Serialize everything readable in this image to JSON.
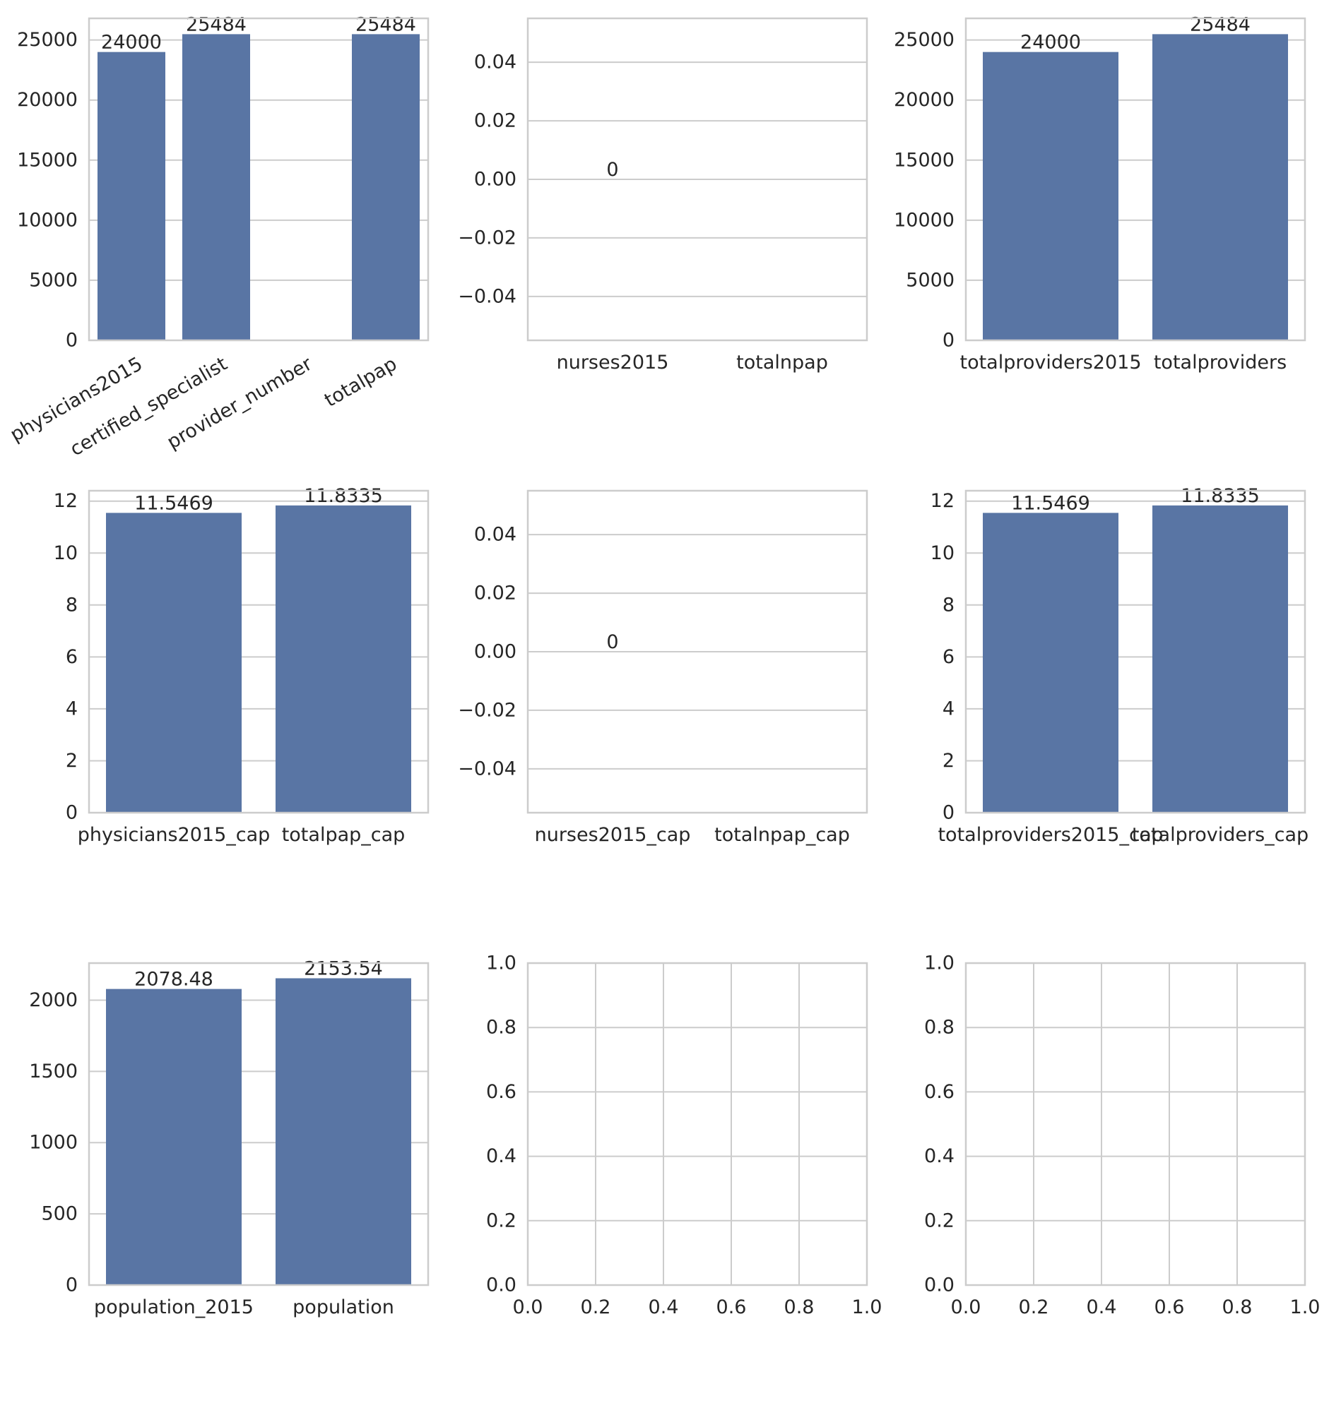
{
  "chart_data": [
    {
      "type": "bar",
      "categories": [
        "physicians2015",
        "certified_specialist",
        "provider_number",
        "totalpap"
      ],
      "values": [
        24000,
        25484,
        0,
        25484
      ],
      "data_labels": [
        "24000",
        "25484",
        "",
        "25484"
      ],
      "ylim": [
        0,
        26800
      ],
      "yticks": [
        0,
        5000,
        10000,
        15000,
        20000,
        25000
      ],
      "ytick_labels": [
        "0",
        "5000",
        "10000",
        "15000",
        "20000",
        "25000"
      ],
      "xtick_rotation": 30,
      "grid": "y"
    },
    {
      "type": "bar",
      "categories": [
        "nurses2015",
        "totalnpap"
      ],
      "values": [
        0,
        0
      ],
      "data_labels": [
        "0",
        ""
      ],
      "ylim": [
        -0.055,
        0.055
      ],
      "yticks": [
        -0.04,
        -0.02,
        0.0,
        0.02,
        0.04
      ],
      "ytick_labels": [
        "−0.04",
        "−0.02",
        "0.00",
        "0.02",
        "0.04"
      ],
      "grid": "y"
    },
    {
      "type": "bar",
      "categories": [
        "totalproviders2015",
        "totalproviders"
      ],
      "values": [
        24000,
        25484
      ],
      "data_labels": [
        "24000",
        "25484"
      ],
      "ylim": [
        0,
        26800
      ],
      "yticks": [
        0,
        5000,
        10000,
        15000,
        20000,
        25000
      ],
      "ytick_labels": [
        "0",
        "5000",
        "10000",
        "15000",
        "20000",
        "25000"
      ],
      "grid": "y"
    },
    {
      "type": "bar",
      "categories": [
        "physicians2015_cap",
        "totalpap_cap"
      ],
      "values": [
        11.5469,
        11.8335
      ],
      "data_labels": [
        "11.5469",
        "11.8335"
      ],
      "ylim": [
        0,
        12.4
      ],
      "yticks": [
        0,
        2,
        4,
        6,
        8,
        10,
        12
      ],
      "ytick_labels": [
        "0",
        "2",
        "4",
        "6",
        "8",
        "10",
        "12"
      ],
      "grid": "y"
    },
    {
      "type": "bar",
      "categories": [
        "nurses2015_cap",
        "totalnpap_cap"
      ],
      "values": [
        0,
        0
      ],
      "data_labels": [
        "0",
        ""
      ],
      "ylim": [
        -0.055,
        0.055
      ],
      "yticks": [
        -0.04,
        -0.02,
        0.0,
        0.02,
        0.04
      ],
      "ytick_labels": [
        "−0.04",
        "−0.02",
        "0.00",
        "0.02",
        "0.04"
      ],
      "grid": "y"
    },
    {
      "type": "bar",
      "categories": [
        "totalproviders2015_cap",
        "totalproviders_cap"
      ],
      "values": [
        11.5469,
        11.8335
      ],
      "data_labels": [
        "11.5469",
        "11.8335"
      ],
      "ylim": [
        0,
        12.4
      ],
      "yticks": [
        0,
        2,
        4,
        6,
        8,
        10,
        12
      ],
      "ytick_labels": [
        "0",
        "2",
        "4",
        "6",
        "8",
        "10",
        "12"
      ],
      "grid": "y"
    },
    {
      "type": "bar",
      "categories": [
        "population_2015",
        "population"
      ],
      "values": [
        2078.48,
        2153.54
      ],
      "data_labels": [
        "2078.48",
        "2153.54"
      ],
      "ylim": [
        0,
        2260
      ],
      "yticks": [
        0,
        500,
        1000,
        1500,
        2000
      ],
      "ytick_labels": [
        "0",
        "500",
        "1000",
        "1500",
        "2000"
      ],
      "grid": "y"
    },
    {
      "type": "empty",
      "xlim": [
        0,
        1
      ],
      "ylim": [
        0,
        1
      ],
      "xticks": [
        0,
        0.2,
        0.4,
        0.6,
        0.8,
        1.0
      ],
      "xtick_labels": [
        "0.0",
        "0.2",
        "0.4",
        "0.6",
        "0.8",
        "1.0"
      ],
      "yticks": [
        0,
        0.2,
        0.4,
        0.6,
        0.8,
        1.0
      ],
      "ytick_labels": [
        "0.0",
        "0.2",
        "0.4",
        "0.6",
        "0.8",
        "1.0"
      ],
      "grid": "both"
    },
    {
      "type": "empty",
      "xlim": [
        0,
        1
      ],
      "ylim": [
        0,
        1
      ],
      "xticks": [
        0,
        0.2,
        0.4,
        0.6,
        0.8,
        1.0
      ],
      "xtick_labels": [
        "0.0",
        "0.2",
        "0.4",
        "0.6",
        "0.8",
        "1.0"
      ],
      "yticks": [
        0,
        0.2,
        0.4,
        0.6,
        0.8,
        1.0
      ],
      "ytick_labels": [
        "0.0",
        "0.2",
        "0.4",
        "0.6",
        "0.8",
        "1.0"
      ],
      "grid": "both"
    }
  ],
  "colors": {
    "bar": "#5975a4",
    "grid": "#cccccc",
    "spine": "#cccccc",
    "text": "#262626"
  }
}
